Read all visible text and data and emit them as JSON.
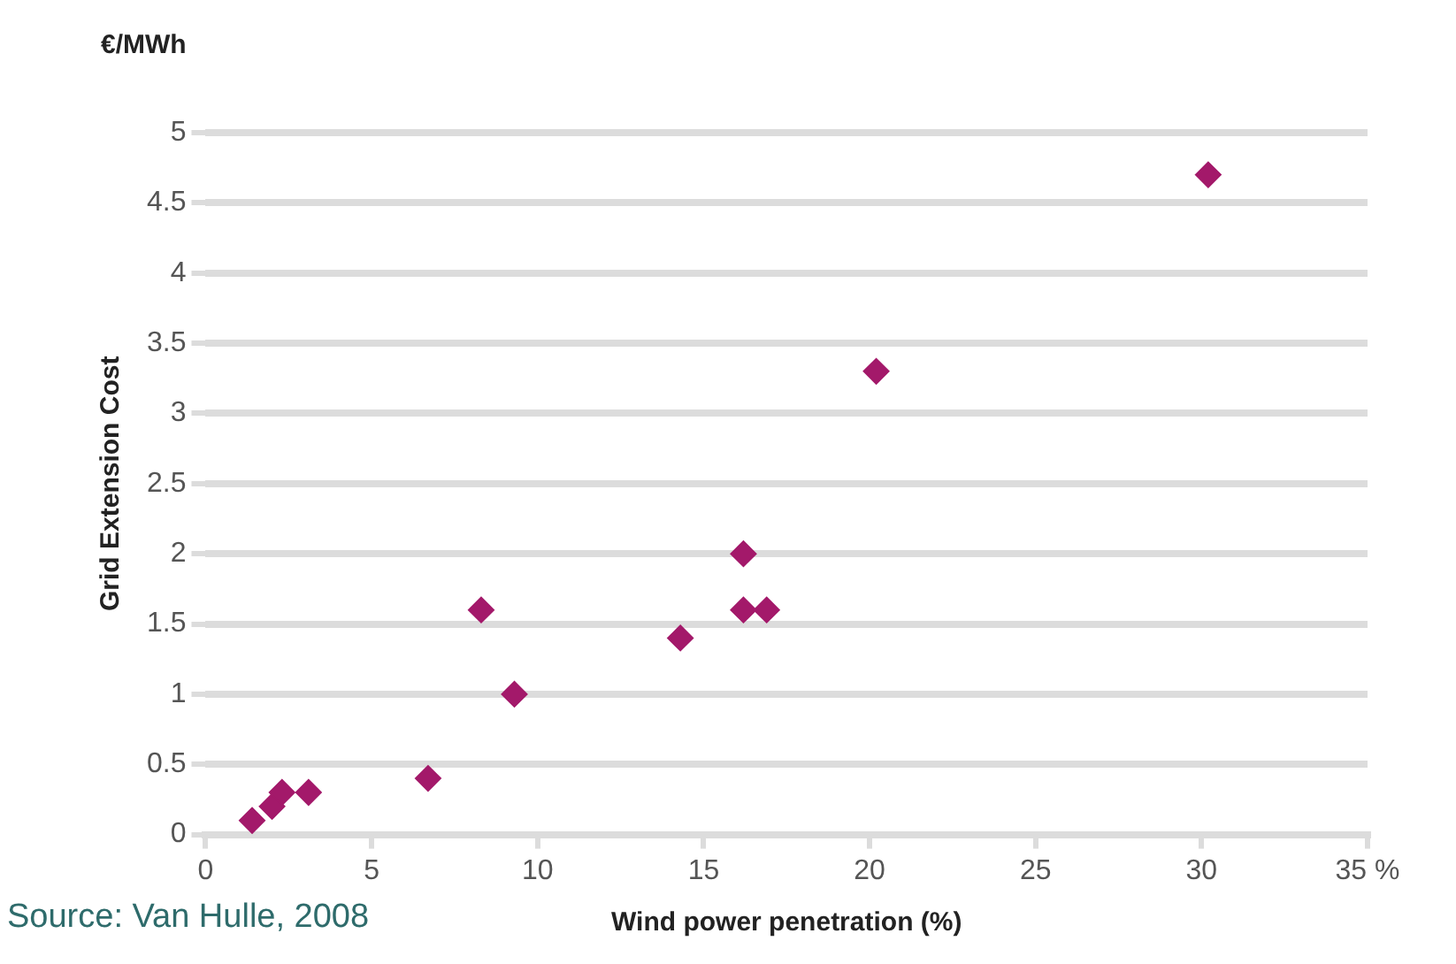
{
  "chart_data": {
    "type": "scatter",
    "xlabel": "Wind power penetration (%)",
    "ylabel": "Grid Extension Cost",
    "annotations": [
      "€/MWh",
      "Source: Van Hulle, 2008"
    ],
    "series": [
      {
        "color": "#a3196a",
        "x": [
          1.4,
          2.0,
          2.3,
          3.1,
          6.7,
          8.3,
          9.3,
          14.3,
          16.2,
          16.2,
          16.9,
          20.2,
          30.2
        ],
        "values": [
          0.1,
          0.2,
          0.3,
          0.3,
          0.4,
          1.6,
          1.0,
          1.4,
          2.0,
          1.6,
          1.6,
          3.3,
          4.7
        ]
      }
    ],
    "xlim": [
      0,
      35
    ],
    "xticks": [
      0,
      5,
      10,
      15,
      20,
      25,
      30,
      {
        "value": 35,
        "label": "35 %"
      }
    ],
    "ylim": [
      0,
      5
    ],
    "yticks": [
      0,
      0.5,
      1,
      1.5,
      2,
      2.5,
      3,
      3.5,
      4,
      4.5,
      5
    ],
    "grid": "y",
    "legend": false,
    "marker": "diamond"
  }
}
